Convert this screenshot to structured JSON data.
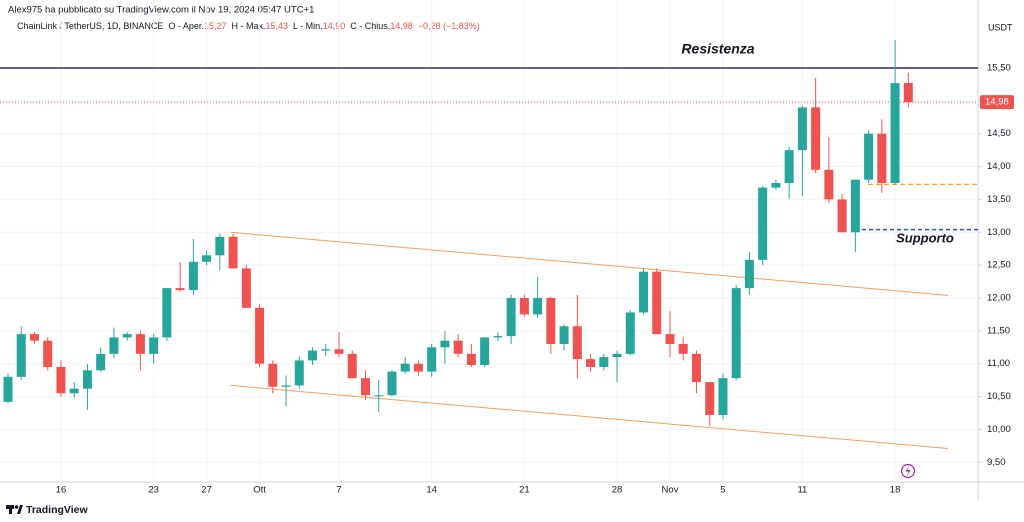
{
  "header": {
    "credit": "Alex975 ha pubblicato su TradingView.com il Nov 19, 2024 05:47 UTC+1",
    "symbol": "ChainLink / TetherUS, 1D, BINANCE",
    "items": [
      {
        "label": "O - Aper.",
        "value": "15,27"
      },
      {
        "label": "H - Max.",
        "value": "15,43"
      },
      {
        "label": "L - Min.",
        "value": "14,90"
      },
      {
        "label": "C - Chius.",
        "value": "14,98"
      }
    ],
    "change": "−0,28 (−1,83%)"
  },
  "footer": {
    "brand": "TradingView"
  },
  "chart_data": {
    "type": "candlestick",
    "categories": [
      null,
      null,
      null,
      null,
      "16",
      null,
      null,
      null,
      null,
      null,
      null,
      "23",
      null,
      null,
      null,
      "27",
      null,
      null,
      null,
      "Ott",
      null,
      null,
      null,
      null,
      null,
      "7",
      null,
      null,
      null,
      null,
      null,
      null,
      "14",
      null,
      null,
      null,
      null,
      null,
      null,
      "21",
      null,
      null,
      null,
      null,
      null,
      null,
      "28",
      null,
      null,
      null,
      "Nov",
      null,
      null,
      null,
      "5",
      null,
      null,
      null,
      null,
      null,
      "11",
      null,
      null,
      null,
      null,
      null,
      null,
      "18",
      null
    ],
    "open": [
      10.42,
      10.8,
      11.45,
      11.35,
      10.95,
      10.55,
      10.62,
      10.9,
      11.15,
      11.4,
      11.45,
      11.15,
      11.4,
      12.15,
      12.12,
      12.55,
      12.65,
      12.93,
      12.45,
      11.85,
      11.0,
      10.65,
      10.67,
      11.05,
      11.2,
      11.22,
      11.15,
      10.78,
      10.52,
      10.52,
      10.88,
      11.0,
      10.88,
      11.25,
      11.35,
      11.15,
      10.98,
      11.4,
      11.42,
      12.0,
      11.75,
      12.0,
      11.3,
      11.57,
      11.07,
      10.95,
      11.1,
      11.15,
      11.78,
      12.4,
      11.45,
      11.3,
      11.15,
      10.72,
      10.22,
      10.78,
      12.15,
      12.58,
      13.68,
      13.75,
      14.25,
      14.9,
      13.95,
      13.5,
      13.0,
      13.8,
      14.5,
      13.75,
      15.27
    ],
    "high": [
      10.85,
      11.57,
      11.48,
      11.4,
      11.05,
      10.72,
      11.0,
      11.25,
      11.55,
      11.48,
      11.5,
      11.45,
      12.15,
      12.55,
      12.9,
      12.72,
      12.98,
      12.98,
      12.5,
      11.9,
      11.05,
      10.82,
      11.12,
      11.25,
      11.3,
      11.48,
      11.2,
      10.9,
      10.75,
      10.9,
      11.1,
      11.05,
      11.3,
      11.5,
      11.45,
      11.3,
      11.4,
      11.48,
      12.05,
      12.05,
      12.32,
      12.02,
      11.6,
      12.05,
      11.15,
      11.15,
      11.2,
      11.82,
      12.45,
      12.45,
      11.8,
      11.4,
      11.2,
      10.72,
      10.85,
      12.2,
      12.7,
      13.7,
      13.8,
      14.3,
      14.92,
      15.35,
      14.45,
      13.58,
      13.8,
      14.55,
      14.72,
      15.93,
      15.43
    ],
    "low": [
      10.4,
      10.75,
      11.3,
      10.9,
      10.5,
      10.48,
      10.3,
      10.88,
      11.08,
      11.35,
      10.9,
      11.0,
      11.35,
      12.1,
      12.05,
      12.5,
      12.42,
      12.45,
      11.85,
      10.95,
      10.55,
      10.35,
      10.62,
      10.98,
      11.12,
      11.1,
      10.78,
      10.45,
      10.27,
      10.5,
      10.85,
      10.82,
      10.8,
      11.0,
      11.1,
      10.95,
      10.95,
      11.35,
      11.3,
      11.72,
      11.7,
      11.15,
      11.2,
      10.78,
      10.88,
      10.9,
      10.72,
      11.12,
      11.75,
      11.45,
      11.1,
      11.05,
      10.55,
      10.05,
      10.15,
      10.75,
      12.05,
      12.5,
      13.65,
      13.5,
      13.55,
      13.9,
      13.45,
      13.0,
      12.7,
      13.75,
      13.6,
      13.72,
      14.9
    ],
    "close": [
      10.8,
      11.45,
      11.35,
      10.95,
      10.55,
      10.62,
      10.9,
      11.15,
      11.4,
      11.45,
      11.15,
      11.4,
      12.15,
      12.12,
      12.55,
      12.65,
      12.93,
      12.45,
      11.85,
      11.0,
      10.65,
      10.67,
      11.05,
      11.2,
      11.22,
      11.15,
      10.78,
      10.52,
      10.52,
      10.88,
      11.0,
      10.88,
      11.25,
      11.35,
      11.15,
      10.98,
      11.4,
      11.42,
      12.0,
      11.75,
      12.0,
      11.3,
      11.57,
      11.07,
      10.95,
      11.1,
      11.15,
      11.78,
      12.4,
      11.45,
      11.3,
      11.15,
      10.72,
      10.22,
      10.78,
      12.15,
      12.58,
      13.68,
      13.75,
      14.25,
      14.9,
      13.95,
      13.5,
      13.0,
      13.8,
      14.5,
      13.75,
      15.27,
      14.98
    ],
    "up_color": "#26a69a",
    "down_color": "#ef5350",
    "ylim": [
      9.2,
      16.23
    ],
    "yticks": [
      {
        "value": 9.5,
        "label": "9,50"
      },
      {
        "value": 10,
        "label": "10,00"
      },
      {
        "value": 10.5,
        "label": "10,50"
      },
      {
        "value": 11,
        "label": "11,00"
      },
      {
        "value": 11.5,
        "label": "11,50"
      },
      {
        "value": 12,
        "label": "12,00"
      },
      {
        "value": 12.5,
        "label": "12,50"
      },
      {
        "value": 13,
        "label": "13,00"
      },
      {
        "value": 13.5,
        "label": "13,50"
      },
      {
        "value": 14,
        "label": "14,00"
      },
      {
        "value": 14.5,
        "label": "14,50"
      },
      {
        "value": 15,
        "label": "15,00"
      },
      {
        "value": 15.5,
        "label": "15,50"
      }
    ],
    "grid": true,
    "y_axis_label": "USDT",
    "last_price": {
      "value": 14.98,
      "label": "14,98",
      "color": "#ef5350"
    },
    "resistance": {
      "label": "Resistenza",
      "value": 15.5,
      "color": "#2f2b6e",
      "text_color": "#7e57c2"
    },
    "support": {
      "label": "Supporto",
      "value": 13.04,
      "color": "#1e53c8",
      "text_color": "#2962ff"
    },
    "level": {
      "value": 13.73,
      "color": "#ff9800"
    },
    "channel": {
      "color": "#f5a05a",
      "lines": [
        {
          "x": [
            16.8,
            71
          ],
          "y": [
            13.0,
            12.04
          ]
        },
        {
          "x": [
            16.8,
            71
          ],
          "y": [
            10.67,
            9.71
          ]
        }
      ]
    }
  }
}
